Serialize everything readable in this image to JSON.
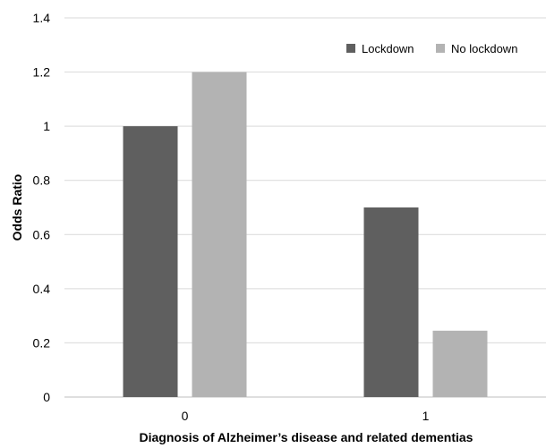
{
  "chart_data": {
    "type": "bar",
    "title": "",
    "xlabel": "Diagnosis of Alzheimer’s disease and related dementias",
    "ylabel": "Odds Ratio",
    "categories": [
      "0",
      "1"
    ],
    "series": [
      {
        "name": "Lockdown",
        "color": "#5f5f5f",
        "values": [
          1.0,
          0.7
        ]
      },
      {
        "name": "No lockdown",
        "color": "#b3b3b3",
        "values": [
          1.2,
          0.245
        ]
      }
    ],
    "ylim": [
      0,
      1.4
    ],
    "yticks": [
      "0",
      "0.2",
      "0.4",
      "0.6",
      "0.8",
      "1",
      "1.2",
      "1.4"
    ],
    "grid": true,
    "legend_position": "top-right"
  }
}
